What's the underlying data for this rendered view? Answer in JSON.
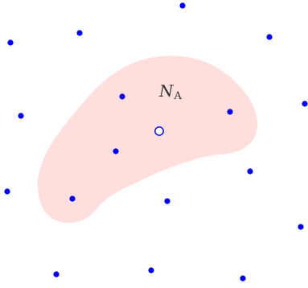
{
  "diagram": {
    "region_label": {
      "main": "N",
      "subscript": "A"
    },
    "colors": {
      "region_fill": "#ffdede",
      "point_fill": "#0000ee",
      "center_stroke": "#0000ee",
      "center_fill": "#ffffff",
      "label": "#333333"
    },
    "point_count": 20,
    "center_point_count": 1
  }
}
